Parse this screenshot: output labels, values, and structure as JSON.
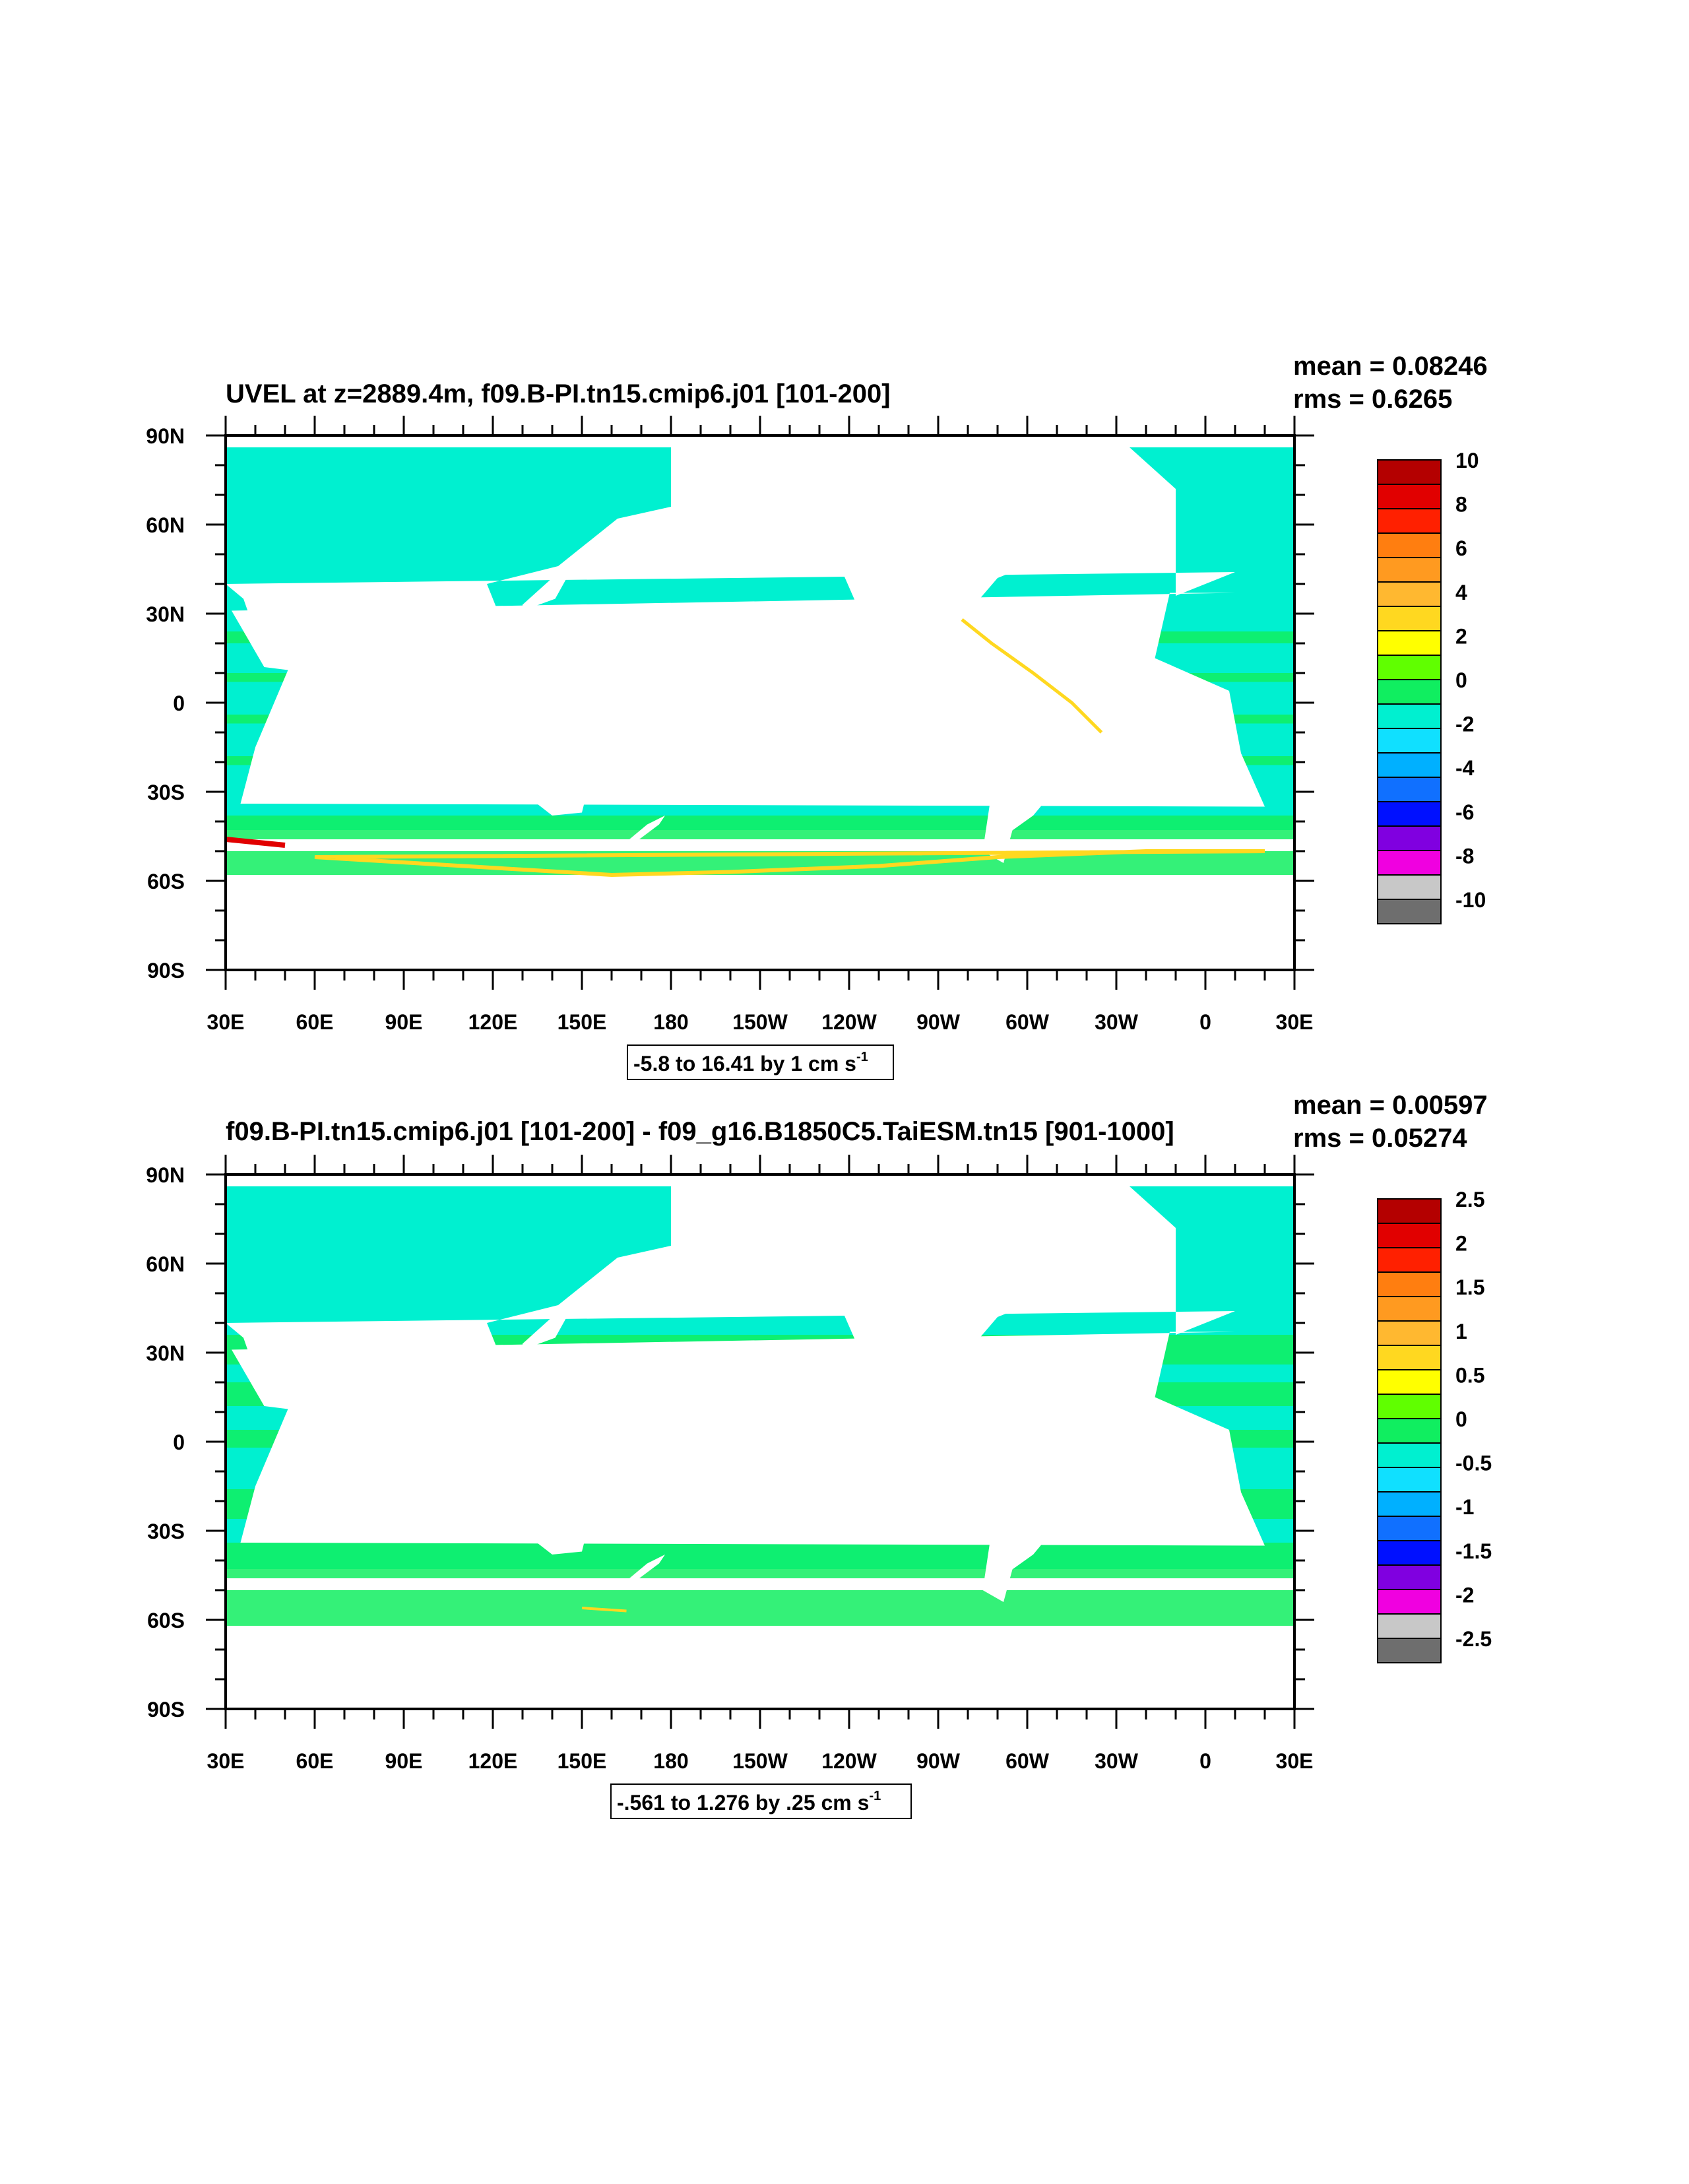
{
  "panels": [
    {
      "title": "UVEL at z=2889.4m, f09.B-PI.tn15.cmip6.j01 [101-200]",
      "mean": "mean = 0.08246",
      "rms": "rms = 0.6265",
      "contour_info": "-5.8 to 16.41 by 1 cm s",
      "contour_info_superscript": "-1",
      "colorbar_labels": [
        "10",
        "8",
        "6",
        "4",
        "2",
        "0",
        "-2",
        "-4",
        "-6",
        "-8",
        "-10"
      ],
      "ocean_color": "#00f0d0",
      "band_color": "#10ee60"
    },
    {
      "title": "f09.B-PI.tn15.cmip6.j01 [101-200] - f09_g16.B1850C5.TaiESM.tn15 [901-1000]",
      "mean": "mean = 0.00597",
      "rms": "rms = 0.05274",
      "contour_info": "-.561 to 1.276 by .25 cm s",
      "contour_info_superscript": "-1",
      "colorbar_labels": [
        "2.5",
        "2",
        "1.5",
        "1",
        "0.5",
        "0",
        "-0.5",
        "-1",
        "-1.5",
        "-2",
        "-2.5"
      ],
      "ocean_color": "#00f0d0",
      "band_color": "#10ee60"
    }
  ],
  "lat_labels": [
    "90N",
    "60N",
    "30N",
    "0",
    "30S",
    "60S",
    "90S"
  ],
  "lon_labels": [
    "30E",
    "60E",
    "90E",
    "120E",
    "150E",
    "180",
    "150W",
    "120W",
    "90W",
    "60W",
    "30W",
    "0",
    "30E"
  ],
  "colorbar_colors": [
    "#b40000",
    "#e10000",
    "#ff2000",
    "#ff7e10",
    "#ff9a20",
    "#ffb830",
    "#ffd820",
    "#ffff00",
    "#60ff00",
    "#10ee60",
    "#00f0d0",
    "#10e0ff",
    "#00b0ff",
    "#1070ff",
    "#0010ff",
    "#8000e0",
    "#f000e0",
    "#c8c8c8",
    "#6e6e6e"
  ]
}
